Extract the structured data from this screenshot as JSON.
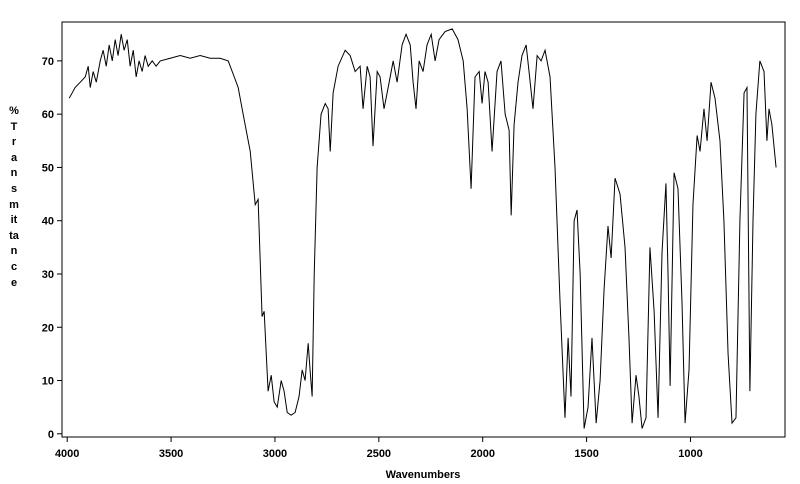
{
  "chart_data": {
    "type": "line",
    "xlabel": "Wavenumbers",
    "ylabel": "% Transmittance",
    "xlim": [
      4025,
      545
    ],
    "ylim": [
      -0.6,
      77.3
    ],
    "xticks": [
      4000,
      3500,
      3000,
      2500,
      2000,
      1500,
      1000
    ],
    "yticks": [
      0,
      10,
      20,
      30,
      40,
      50,
      60,
      70
    ],
    "series": [
      {
        "color": "#000000",
        "x": [
          3990,
          3962,
          3937,
          3913,
          3899,
          3889,
          3875,
          3860,
          3841,
          3827,
          3812,
          3798,
          3783,
          3769,
          3755,
          3740,
          3726,
          3711,
          3697,
          3682,
          3668,
          3654,
          3639,
          3625,
          3610,
          3591,
          3572,
          3552,
          3504,
          3456,
          3408,
          3360,
          3312,
          3264,
          3225,
          3196,
          3177,
          3158,
          3119,
          3095,
          3081,
          3062,
          3052,
          3033,
          3018,
          3004,
          2989,
          2970,
          2956,
          2941,
          2922,
          2903,
          2884,
          2869,
          2855,
          2840,
          2831,
          2821,
          2811,
          2797,
          2778,
          2758,
          2744,
          2734,
          2720,
          2696,
          2662,
          2638,
          2614,
          2590,
          2576,
          2556,
          2542,
          2528,
          2508,
          2494,
          2475,
          2455,
          2431,
          2412,
          2388,
          2369,
          2349,
          2335,
          2321,
          2306,
          2287,
          2268,
          2248,
          2229,
          2210,
          2181,
          2147,
          2119,
          2094,
          2075,
          2056,
          2037,
          2017,
          2003,
          1989,
          1974,
          1955,
          1931,
          1912,
          1892,
          1873,
          1863,
          1849,
          1830,
          1811,
          1791,
          1777,
          1758,
          1738,
          1719,
          1700,
          1676,
          1652,
          1628,
          1604,
          1589,
          1575,
          1560,
          1546,
          1531,
          1512,
          1493,
          1474,
          1454,
          1435,
          1416,
          1397,
          1382,
          1363,
          1339,
          1315,
          1296,
          1281,
          1262,
          1248,
          1233,
          1214,
          1195,
          1175,
          1156,
          1137,
          1118,
          1108,
          1098,
          1079,
          1060,
          1041,
          1026,
          1007,
          988,
          968,
          954,
          935,
          920,
          901,
          882,
          858,
          839,
          819,
          800,
          781,
          762,
          742,
          728,
          714,
          699,
          685,
          666,
          646,
          632,
          622,
          608,
          588
        ],
        "values": [
          63,
          65,
          66,
          67,
          69,
          65,
          68,
          66,
          70,
          72,
          69,
          73,
          70,
          74,
          71,
          75,
          72,
          74,
          69,
          72,
          67,
          70,
          68,
          71,
          69,
          70,
          69,
          70,
          70.5,
          71,
          70.5,
          71,
          70.5,
          70.5,
          70,
          67,
          65,
          61,
          53,
          43,
          44,
          22,
          23,
          8,
          11,
          6,
          5,
          10,
          8,
          4,
          3.5,
          4,
          7,
          12,
          10,
          17,
          12,
          7,
          30,
          50,
          60,
          62,
          61,
          53,
          64,
          69,
          72,
          71,
          68,
          69,
          61,
          69,
          67,
          54,
          68,
          67,
          61,
          65,
          70,
          66,
          73,
          75,
          73,
          66,
          61,
          70,
          68,
          73,
          75,
          70,
          74,
          75.5,
          76,
          74,
          70,
          61,
          46,
          67,
          68,
          62,
          68,
          66,
          53,
          68,
          70,
          60,
          57,
          41,
          58,
          66,
          71,
          73,
          68,
          61,
          71,
          70,
          72,
          67,
          50,
          25,
          3,
          18,
          7,
          40,
          42,
          30,
          1,
          5,
          18,
          2,
          10,
          27,
          39,
          33,
          48,
          45,
          35,
          18,
          2,
          11,
          7,
          1,
          3,
          35,
          23,
          3,
          34,
          47,
          30,
          9,
          49,
          46,
          25,
          2,
          12,
          43,
          56,
          53,
          61,
          55,
          66,
          63,
          55,
          40,
          15,
          2,
          3,
          40,
          64,
          65,
          8,
          40,
          60,
          70,
          68,
          55,
          61,
          58,
          50
        ]
      }
    ]
  }
}
